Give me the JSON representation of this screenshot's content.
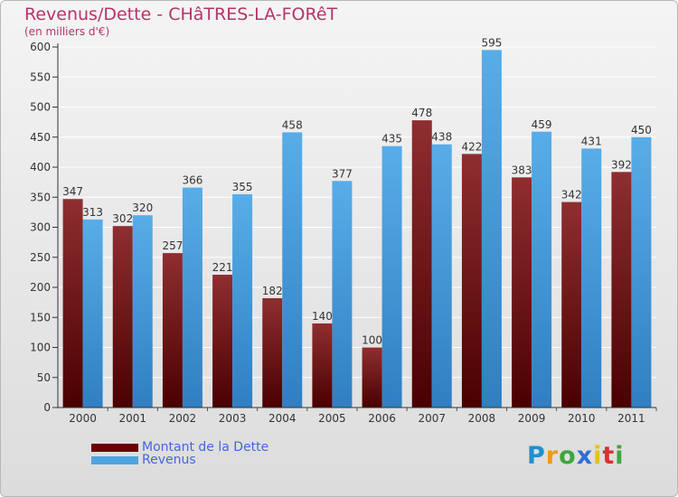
{
  "header": {
    "title": "Revenus/Dette - CHâTRES-LA-FORêT",
    "subtitle": "(en milliers d'€)"
  },
  "legend": {
    "items": [
      {
        "label": "Montant de la Dette",
        "color": "#6b0000"
      },
      {
        "label": "Revenus",
        "color": "#4da3e0"
      }
    ]
  },
  "logo": {
    "text": "Proxiti",
    "letters": [
      "P",
      "r",
      "o",
      "x",
      "i",
      "t",
      "i"
    ],
    "colors": [
      "#1f8fcf",
      "#f09a16",
      "#3aa83a",
      "#2f6fd6",
      "#e6c016",
      "#d93030",
      "#3aa83a"
    ]
  },
  "chart_data": {
    "type": "bar",
    "title": "Revenus/Dette - CHâTRES-LA-FORêT",
    "ylabel": "(en milliers d'€)",
    "xlabel": "",
    "categories": [
      "2000",
      "2001",
      "2002",
      "2003",
      "2004",
      "2005",
      "2006",
      "2007",
      "2008",
      "2009",
      "2010",
      "2011"
    ],
    "series": [
      {
        "name": "Montant de la Dette",
        "color": "#6b0000",
        "values": [
          347,
          302,
          257,
          221,
          182,
          140,
          100,
          478,
          422,
          383,
          342,
          392
        ]
      },
      {
        "name": "Revenus",
        "color": "#4da3e0",
        "values": [
          313,
          320,
          366,
          355,
          458,
          377,
          435,
          438,
          595,
          459,
          431,
          450
        ]
      }
    ],
    "ylim": [
      0,
      600
    ],
    "yticks": [
      0,
      50,
      100,
      150,
      200,
      250,
      300,
      350,
      400,
      450,
      500,
      550,
      600
    ],
    "grid": true,
    "legend_position": "bottom-left"
  }
}
